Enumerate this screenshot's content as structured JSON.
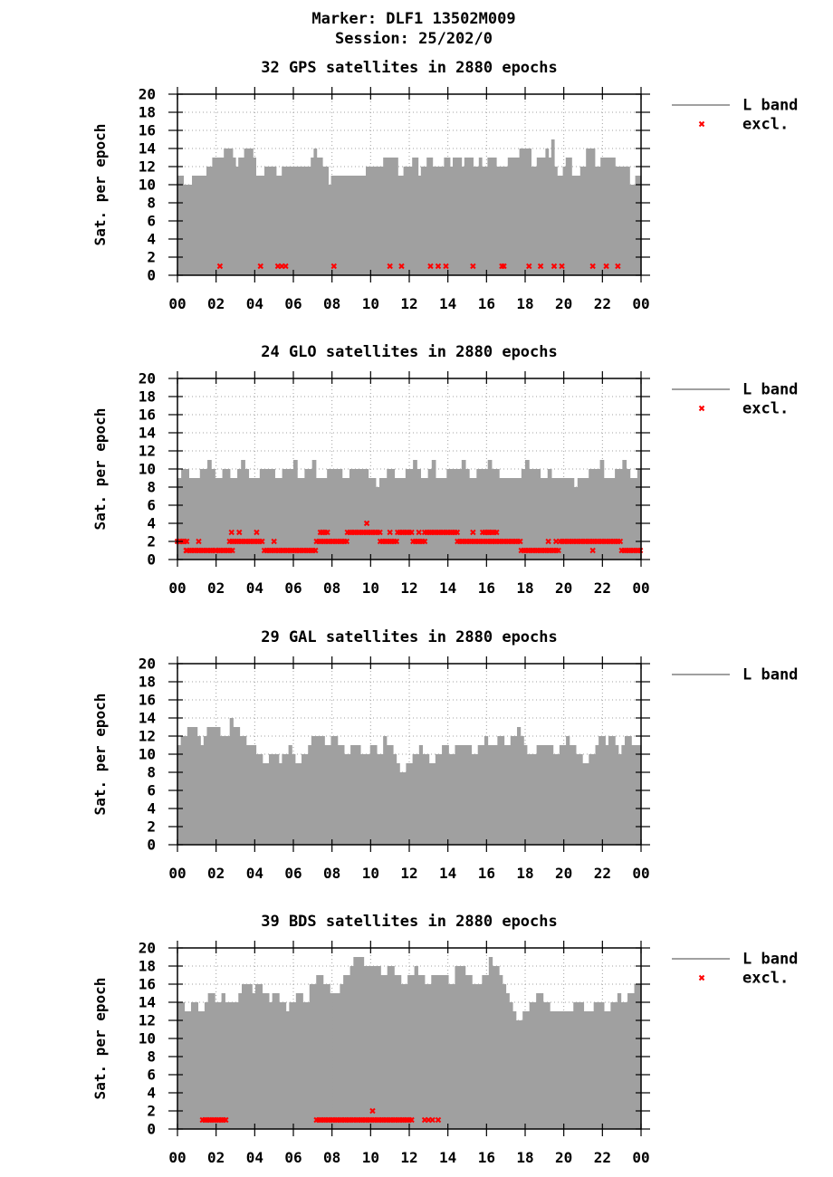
{
  "header": {
    "marker": "Marker: DLF1 13502M009",
    "session": "Session: 25/202/0"
  },
  "x_tick_labels": [
    "00",
    "02",
    "04",
    "06",
    "08",
    "10",
    "12",
    "14",
    "16",
    "18",
    "20",
    "22",
    "00"
  ],
  "y_tick_labels": [
    "0",
    "2",
    "4",
    "6",
    "8",
    "10",
    "12",
    "14",
    "16",
    "18",
    "20"
  ],
  "ylabel": "Sat. per epoch",
  "colors": {
    "bars": "#a0a0a0",
    "excl": "#ff0000",
    "grid": "#a0a0a0",
    "axis": "#000000"
  },
  "chart_data": [
    {
      "type": "bar",
      "title": "32 GPS satellites in 2880 epochs",
      "xlim": [
        0,
        24
      ],
      "ylim": [
        0,
        20
      ],
      "legend": [
        {
          "label": "L band",
          "kind": "line"
        },
        {
          "label": "excl.",
          "kind": "marker"
        }
      ],
      "L_band": [
        11,
        11,
        10,
        10,
        10,
        11,
        11,
        11,
        11,
        11,
        12,
        12,
        13,
        13,
        13,
        13,
        14,
        14,
        14,
        13,
        12,
        13,
        13,
        14,
        14,
        14,
        13,
        11,
        11,
        11,
        12,
        12,
        12,
        12,
        11,
        11,
        12,
        12,
        12,
        12,
        12,
        12,
        12,
        12,
        12,
        12,
        13,
        14,
        13,
        13,
        12,
        12,
        10,
        11,
        11,
        11,
        11,
        11,
        11,
        11,
        11,
        11,
        11,
        11,
        11,
        12,
        12,
        12,
        12,
        12,
        12,
        13,
        13,
        13,
        13,
        13,
        11,
        11,
        12,
        12,
        12,
        13,
        13,
        11,
        12,
        12,
        13,
        13,
        12,
        12,
        12,
        12,
        13,
        13,
        12,
        13,
        13,
        13,
        12,
        13,
        13,
        13,
        12,
        12,
        13,
        12,
        12,
        13,
        13,
        13,
        12,
        12,
        12,
        12,
        13,
        13,
        13,
        13,
        14,
        14,
        14,
        14,
        12,
        12,
        13,
        13,
        13,
        14,
        13,
        15,
        12,
        11,
        11,
        12,
        13,
        13,
        11,
        11,
        11,
        12,
        12,
        14,
        14,
        14,
        12,
        12,
        13,
        13,
        13,
        13,
        13,
        12,
        12,
        12,
        12,
        12,
        10,
        10,
        11,
        11
      ],
      "excl": [
        [
          2.2,
          1
        ],
        [
          4.3,
          1
        ],
        [
          5.2,
          1
        ],
        [
          5.4,
          1
        ],
        [
          5.6,
          1
        ],
        [
          8.1,
          1
        ],
        [
          11.0,
          1
        ],
        [
          11.6,
          1
        ],
        [
          13.1,
          1
        ],
        [
          13.5,
          1
        ],
        [
          13.9,
          1
        ],
        [
          15.3,
          1
        ],
        [
          16.8,
          1
        ],
        [
          16.9,
          1
        ],
        [
          18.2,
          1
        ],
        [
          18.8,
          1
        ],
        [
          19.5,
          1
        ],
        [
          19.9,
          1
        ],
        [
          21.5,
          1
        ],
        [
          22.2,
          1
        ],
        [
          22.8,
          1
        ]
      ]
    },
    {
      "type": "bar",
      "title": "24 GLO satellites in 2880 epochs",
      "xlim": [
        0,
        24
      ],
      "ylim": [
        0,
        20
      ],
      "legend": [
        {
          "label": "L band",
          "kind": "line"
        },
        {
          "label": "excl.",
          "kind": "marker"
        }
      ],
      "L_band": [
        9,
        10,
        10,
        9,
        9,
        9,
        10,
        10,
        11,
        10,
        9,
        9,
        10,
        10,
        9,
        9,
        10,
        11,
        10,
        9,
        9,
        9,
        10,
        10,
        10,
        10,
        9,
        9,
        10,
        10,
        10,
        11,
        9,
        9,
        10,
        10,
        11,
        9,
        9,
        9,
        10,
        10,
        10,
        10,
        9,
        9,
        10,
        10,
        10,
        10,
        10,
        9,
        9,
        8,
        9,
        9,
        10,
        10,
        9,
        9,
        9,
        10,
        10,
        11,
        10,
        9,
        9,
        10,
        11,
        9,
        9,
        9,
        10,
        10,
        10,
        10,
        11,
        10,
        9,
        9,
        10,
        10,
        10,
        11,
        10,
        10,
        9,
        9,
        9,
        9,
        9,
        9,
        10,
        11,
        10,
        10,
        10,
        9,
        9,
        10,
        9,
        9,
        9,
        9,
        9,
        9,
        8,
        9,
        9,
        9,
        10,
        10,
        10,
        11,
        9,
        9,
        9,
        10,
        10,
        11,
        10,
        9,
        9,
        10
      ],
      "excl": [
        [
          0.3,
          2
        ],
        [
          0.45,
          1
        ],
        [
          1.1,
          2
        ],
        [
          2.0,
          1
        ],
        [
          2.8,
          3
        ],
        [
          3.2,
          3
        ],
        [
          4.1,
          3
        ],
        [
          5.0,
          2
        ],
        [
          7.5,
          3
        ],
        [
          9.8,
          4
        ],
        [
          11.0,
          3
        ],
        [
          12.5,
          3
        ],
        [
          15.3,
          3
        ],
        [
          16.1,
          3
        ],
        [
          19.2,
          2
        ],
        [
          19.6,
          2
        ],
        [
          21.5,
          1
        ]
      ],
      "excl_ranges": [
        [
          0.0,
          0.5,
          2
        ],
        [
          0.5,
          2.0,
          1
        ],
        [
          2.0,
          2.9,
          1
        ],
        [
          2.7,
          4.4,
          2
        ],
        [
          4.5,
          7.2,
          1
        ],
        [
          7.2,
          8.8,
          2
        ],
        [
          7.4,
          7.8,
          3
        ],
        [
          8.8,
          10.5,
          3
        ],
        [
          10.5,
          11.4,
          2
        ],
        [
          11.4,
          12.2,
          3
        ],
        [
          12.2,
          12.8,
          2
        ],
        [
          12.8,
          14.5,
          3
        ],
        [
          14.5,
          16.3,
          2
        ],
        [
          15.8,
          16.6,
          3
        ],
        [
          16.3,
          17.8,
          2
        ],
        [
          17.8,
          19.8,
          1
        ],
        [
          19.8,
          23.0,
          2
        ],
        [
          23.0,
          24.0,
          1
        ]
      ]
    },
    {
      "type": "bar",
      "title": "29 GAL satellites in 2880 epochs",
      "xlim": [
        0,
        24
      ],
      "ylim": [
        0,
        20
      ],
      "legend": [
        {
          "label": "L band",
          "kind": "line"
        }
      ],
      "L_band": [
        11,
        12,
        12,
        13,
        13,
        13,
        12,
        11,
        12,
        13,
        13,
        13,
        13,
        12,
        12,
        12,
        14,
        13,
        13,
        12,
        12,
        11,
        11,
        11,
        10,
        10,
        9,
        9,
        10,
        10,
        10,
        9,
        10,
        10,
        11,
        10,
        9,
        9,
        10,
        10,
        11,
        12,
        12,
        12,
        12,
        11,
        11,
        12,
        12,
        11,
        11,
        10,
        10,
        11,
        11,
        11,
        10,
        10,
        10,
        11,
        11,
        10,
        10,
        12,
        11,
        11,
        10,
        9,
        8,
        8,
        9,
        9,
        10,
        10,
        11,
        10,
        10,
        9,
        9,
        10,
        10,
        11,
        11,
        10,
        10,
        11,
        11,
        11,
        11,
        11,
        10,
        10,
        11,
        11,
        12,
        11,
        11,
        11,
        12,
        12,
        11,
        11,
        12,
        12,
        13,
        12,
        11,
        10,
        10,
        10,
        11,
        11,
        11,
        11,
        11,
        10,
        10,
        11,
        11,
        12,
        11,
        11,
        10,
        10,
        9,
        9,
        10,
        10,
        11,
        12,
        12,
        11,
        12,
        12,
        11,
        10,
        11,
        12,
        12,
        11,
        11,
        11
      ],
      "excl": []
    },
    {
      "type": "bar",
      "title": "39 BDS satellites in 2880 epochs",
      "xlim": [
        0,
        24
      ],
      "ylim": [
        0,
        20
      ],
      "legend": [
        {
          "label": "L band",
          "kind": "line"
        },
        {
          "label": "excl.",
          "kind": "marker"
        }
      ],
      "L_band": [
        14,
        14,
        13,
        13,
        14,
        14,
        13,
        13,
        14,
        15,
        15,
        14,
        14,
        15,
        14,
        14,
        14,
        14,
        15,
        16,
        16,
        16,
        15,
        16,
        16,
        15,
        15,
        14,
        15,
        15,
        14,
        14,
        13,
        14,
        14,
        15,
        15,
        14,
        14,
        16,
        16,
        17,
        17,
        16,
        16,
        15,
        15,
        15,
        16,
        17,
        17,
        18,
        19,
        19,
        19,
        18,
        18,
        18,
        18,
        18,
        17,
        17,
        18,
        18,
        17,
        17,
        16,
        16,
        17,
        17,
        18,
        17,
        17,
        16,
        16,
        17,
        17,
        17,
        17,
        17,
        16,
        16,
        18,
        18,
        18,
        17,
        17,
        16,
        16,
        16,
        17,
        17,
        19,
        18,
        18,
        17,
        16,
        15,
        14,
        13,
        12,
        12,
        13,
        13,
        14,
        14,
        15,
        15,
        14,
        14,
        13,
        13,
        13,
        13,
        13,
        13,
        13,
        14,
        14,
        14,
        13,
        13,
        13,
        14,
        14,
        14,
        13,
        13,
        14,
        14,
        15,
        14,
        14,
        15,
        15,
        16,
        16
      ],
      "excl": [
        [
          10.1,
          2
        ],
        [
          12.8,
          1
        ],
        [
          13.0,
          1
        ],
        [
          13.2,
          1
        ],
        [
          13.5,
          1
        ]
      ],
      "excl_ranges": [
        [
          1.3,
          2.5,
          1
        ],
        [
          7.2,
          12.2,
          1
        ]
      ]
    }
  ]
}
